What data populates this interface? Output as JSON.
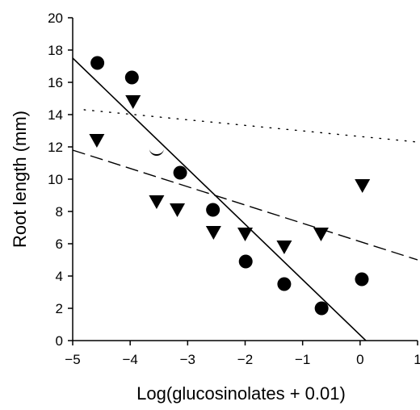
{
  "chart_data": {
    "type": "scatter",
    "title": "",
    "xlabel": "Log(glucosinolates + 0.01)",
    "ylabel": "Root length (mm)",
    "xlim": [
      -5,
      1
    ],
    "ylim": [
      0,
      20
    ],
    "xticks": [
      -5,
      -4,
      -3,
      -2,
      -1,
      0,
      1
    ],
    "yticks": [
      0,
      2,
      4,
      6,
      8,
      10,
      12,
      14,
      16,
      18,
      20
    ],
    "xtick_labels": [
      "−5",
      "−4",
      "−3",
      "−2",
      "−1",
      "0",
      "1"
    ],
    "ytick_labels": [
      "0",
      "2",
      "4",
      "6",
      "8",
      "10",
      "12",
      "14",
      "16",
      "18",
      "20"
    ],
    "grid": false,
    "legend": false,
    "series": [
      {
        "marker": "circle",
        "x": [
          -4.57,
          -3.97,
          -3.13,
          -2.56,
          -1.99,
          -1.32,
          -0.67,
          0.03
        ],
        "y": [
          17.2,
          16.3,
          10.4,
          8.1,
          4.9,
          3.5,
          2.0,
          3.8
        ]
      },
      {
        "marker": "triangle-down",
        "x": [
          -4.58,
          -3.95,
          -3.54,
          -3.18,
          -2.55,
          -2.0,
          -1.32,
          -0.68,
          0.04
        ],
        "y": [
          12.4,
          14.8,
          8.6,
          8.1,
          6.7,
          6.6,
          5.8,
          6.6,
          9.6
        ]
      },
      {
        "marker": "crescent",
        "x": [
          -3.54
        ],
        "y": [
          11.8
        ]
      }
    ],
    "lines": [
      {
        "style": "solid",
        "x": [
          -5,
          0.1
        ],
        "y": [
          17.5,
          0
        ]
      },
      {
        "style": "dashed",
        "x": [
          -5,
          1
        ],
        "y": [
          11.8,
          5.0
        ]
      },
      {
        "style": "dotted",
        "x": [
          -4.8,
          1
        ],
        "y": [
          14.3,
          12.3
        ]
      }
    ]
  }
}
